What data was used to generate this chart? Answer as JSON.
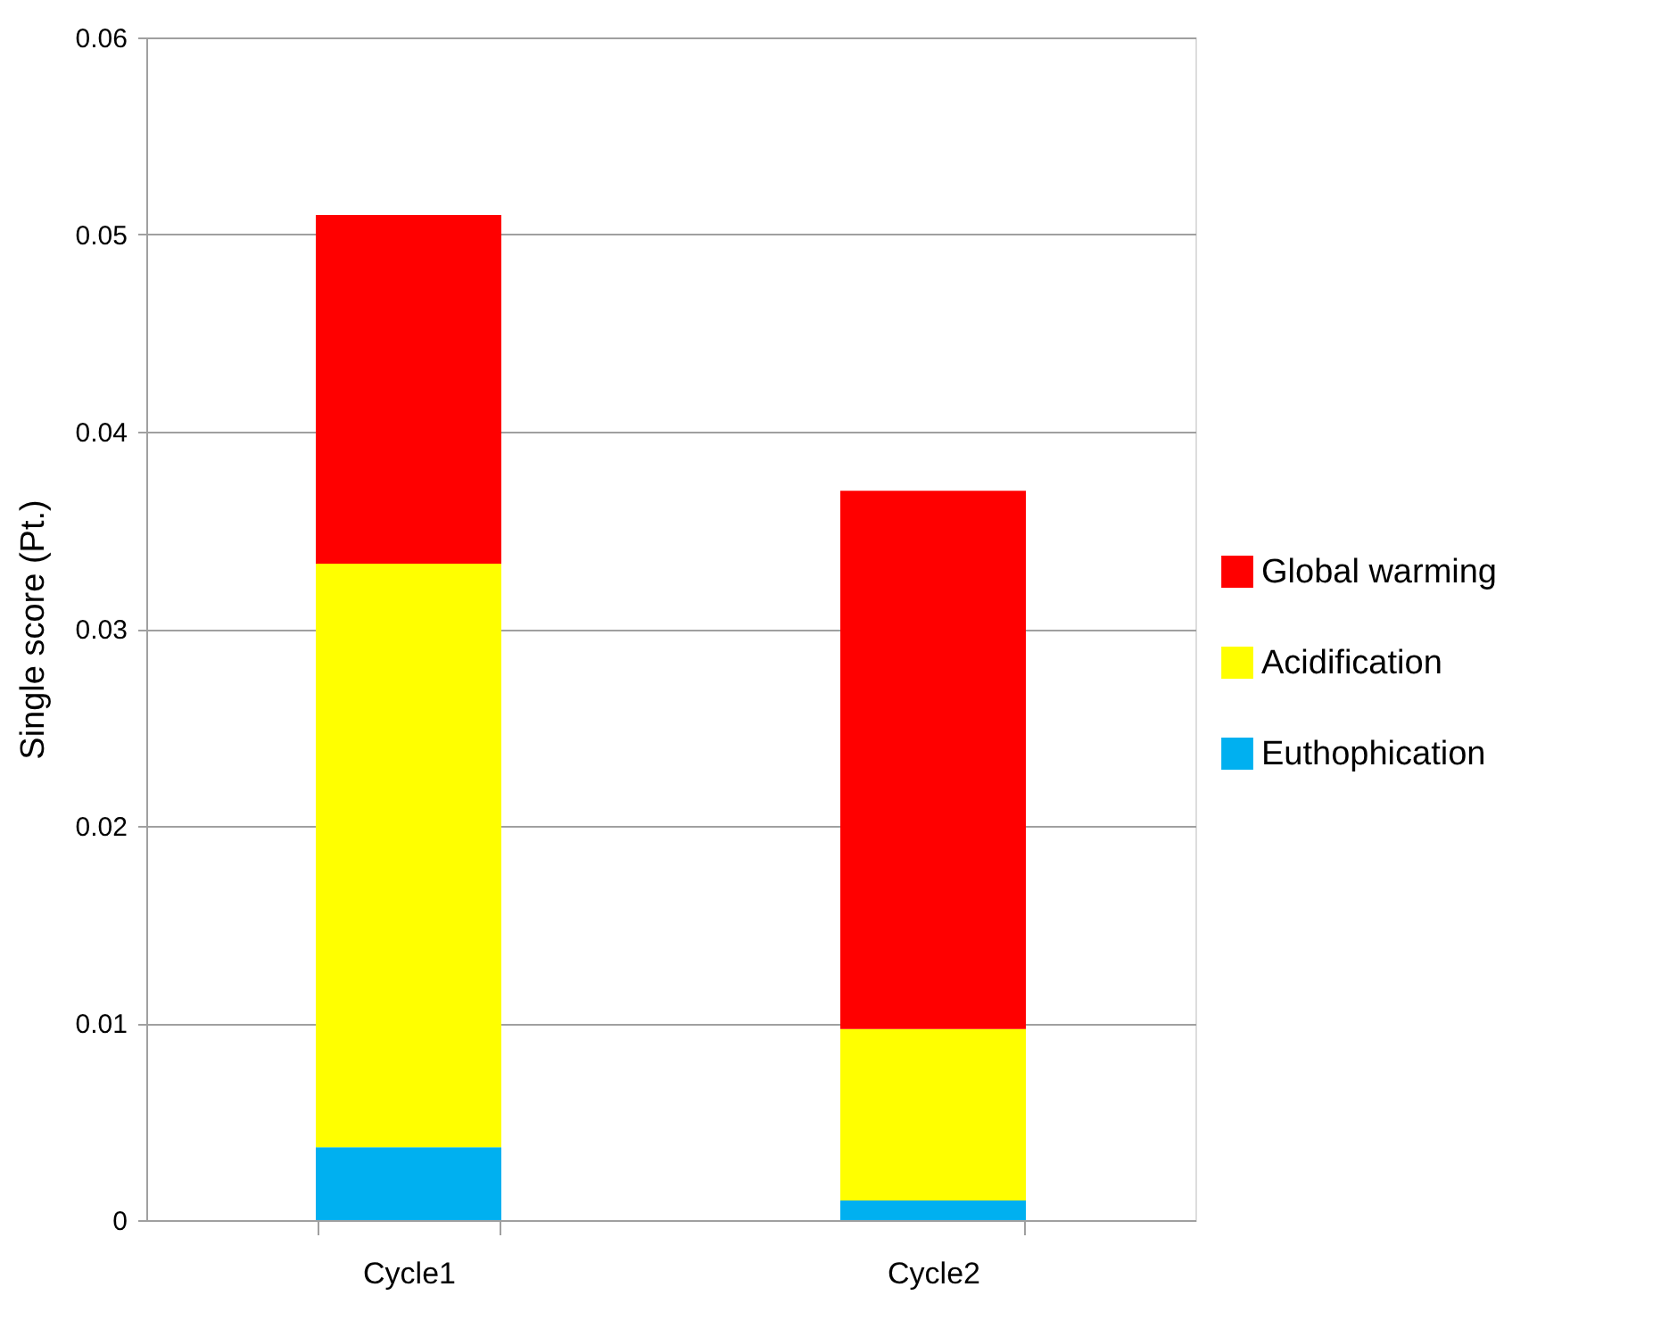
{
  "chart_data": {
    "type": "bar",
    "stacked": true,
    "ylabel": "Single score (Pt.)",
    "categories": [
      "Cycle1",
      "Cycle2"
    ],
    "series": [
      {
        "name": "Euthophication",
        "color": "#00b0f0",
        "values": [
          0.0037,
          0.001
        ]
      },
      {
        "name": "Acidification",
        "color": "#ffff00",
        "values": [
          0.0296,
          0.0087
        ]
      },
      {
        "name": "Global warming",
        "color": "#ff0000",
        "values": [
          0.0177,
          0.0273
        ]
      }
    ],
    "ylim": [
      0,
      0.06
    ],
    "yticks": [
      0,
      0.01,
      0.02,
      0.03,
      0.04,
      0.05,
      0.06
    ],
    "grid": "y",
    "legend": "right"
  }
}
